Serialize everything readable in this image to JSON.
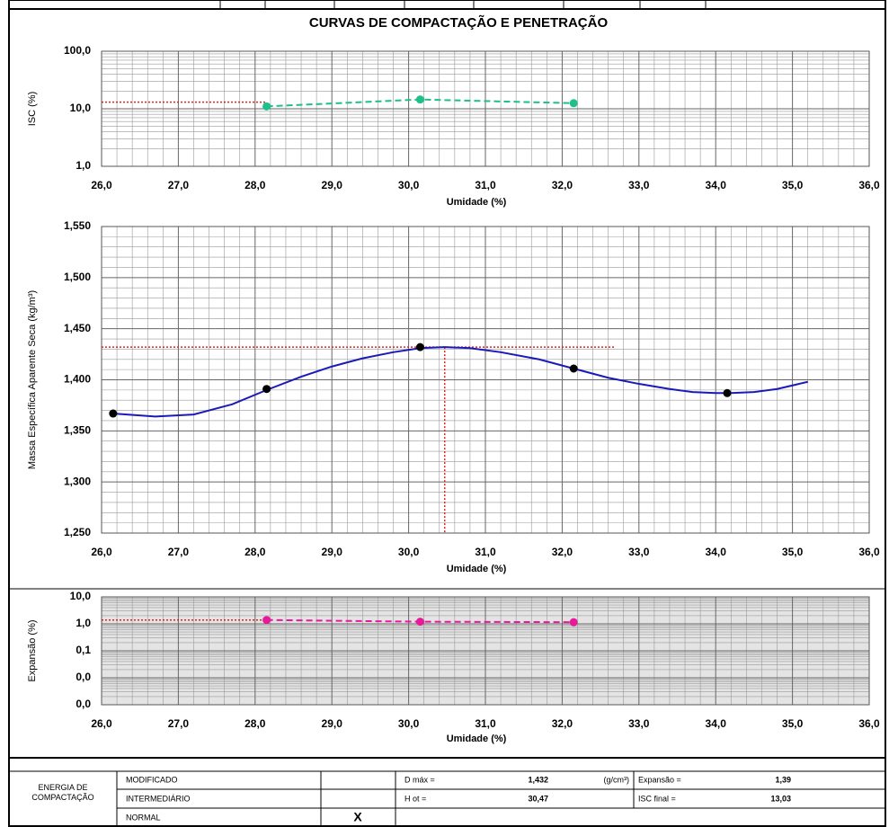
{
  "title": "CURVAS DE COMPACTAÇÃO E PENETRAÇÃO",
  "chart_data": [
    {
      "type": "line",
      "xlabel": "Umidade (%)",
      "ylabel": "ISC (%)",
      "log_scale": true,
      "grid": true,
      "xlim": [
        26,
        36
      ],
      "ylim": [
        1,
        100
      ],
      "xticks": [
        {
          "value": 26,
          "label": "26,0"
        },
        {
          "value": 27,
          "label": "27,0"
        },
        {
          "value": 28,
          "label": "28,0"
        },
        {
          "value": 29,
          "label": "29,0"
        },
        {
          "value": 30,
          "label": "30,0"
        },
        {
          "value": 31,
          "label": "31,0"
        },
        {
          "value": 32,
          "label": "32,0"
        },
        {
          "value": 33,
          "label": "33,0"
        },
        {
          "value": 34,
          "label": "34,0"
        },
        {
          "value": 35,
          "label": "35,0"
        },
        {
          "value": 36,
          "label": "36,0"
        }
      ],
      "yticks": [
        {
          "value": 1,
          "label": "1,0"
        },
        {
          "value": 10,
          "label": "10,0"
        },
        {
          "value": 100,
          "label": "100,0"
        }
      ],
      "reference": {
        "y": 13.03,
        "color": "#e02020"
      },
      "series": [
        {
          "color": "#1dbf8a",
          "dashed": true,
          "markers": true,
          "x": [
            28.15,
            30.15,
            32.15
          ],
          "values": [
            11,
            14.5,
            12.5
          ]
        }
      ]
    },
    {
      "type": "line",
      "xlabel": "Umidade (%)",
      "ylabel": "Massa Específica Aparente Seca (kg/m³)",
      "log_scale": false,
      "grid": true,
      "xlim": [
        26,
        36
      ],
      "ylim": [
        1.25,
        1.55
      ],
      "xticks": [
        {
          "value": 26,
          "label": "26,0"
        },
        {
          "value": 27,
          "label": "27,0"
        },
        {
          "value": 28,
          "label": "28,0"
        },
        {
          "value": 29,
          "label": "29,0"
        },
        {
          "value": 30,
          "label": "30,0"
        },
        {
          "value": 31,
          "label": "31,0"
        },
        {
          "value": 32,
          "label": "32,0"
        },
        {
          "value": 33,
          "label": "33,0"
        },
        {
          "value": 34,
          "label": "34,0"
        },
        {
          "value": 35,
          "label": "35,0"
        },
        {
          "value": 36,
          "label": "36,0"
        }
      ],
      "yticks": [
        {
          "value": 1.25,
          "label": "1,250"
        },
        {
          "value": 1.3,
          "label": "1,300"
        },
        {
          "value": 1.35,
          "label": "1,350"
        },
        {
          "value": 1.4,
          "label": "1,400"
        },
        {
          "value": 1.45,
          "label": "1,450"
        },
        {
          "value": 1.5,
          "label": "1,500"
        },
        {
          "value": 1.55,
          "label": "1,550"
        }
      ],
      "reference": {
        "x": 30.47,
        "y": 1.432,
        "color": "#e02020"
      },
      "series": [
        {
          "color": "#1a1ab8",
          "dashed": false,
          "markers": false,
          "x": [
            26.15,
            26.7,
            27.2,
            27.7,
            28.15,
            28.6,
            29.0,
            29.4,
            29.8,
            30.15,
            30.47,
            30.8,
            31.2,
            31.7,
            32.15,
            32.6,
            33.0,
            33.4,
            33.7,
            34.0,
            34.2,
            34.5,
            34.8,
            35.2
          ],
          "values": [
            1.367,
            1.364,
            1.366,
            1.376,
            1.39,
            1.403,
            1.413,
            1.421,
            1.427,
            1.431,
            1.432,
            1.431,
            1.427,
            1.42,
            1.411,
            1.402,
            1.396,
            1.391,
            1.388,
            1.387,
            1.387,
            1.388,
            1.391,
            1.398
          ]
        },
        {
          "color": "#000000",
          "dashed": false,
          "markers": true,
          "nolines": true,
          "x": [
            26.15,
            28.15,
            30.15,
            32.15,
            34.15
          ],
          "values": [
            1.367,
            1.391,
            1.432,
            1.411,
            1.387
          ]
        }
      ]
    },
    {
      "type": "line",
      "xlabel": "Umidade (%)",
      "ylabel": "Expansão (%)",
      "log_scale": true,
      "grid": true,
      "xlim": [
        26,
        36
      ],
      "ylim": [
        0.001,
        10
      ],
      "xticks": [
        {
          "value": 26,
          "label": "26,0"
        },
        {
          "value": 27,
          "label": "27,0"
        },
        {
          "value": 28,
          "label": "28,0"
        },
        {
          "value": 29,
          "label": "29,0"
        },
        {
          "value": 30,
          "label": "30,0"
        },
        {
          "value": 31,
          "label": "31,0"
        },
        {
          "value": 32,
          "label": "32,0"
        },
        {
          "value": 33,
          "label": "33,0"
        },
        {
          "value": 34,
          "label": "34,0"
        },
        {
          "value": 35,
          "label": "35,0"
        },
        {
          "value": 36,
          "label": "36,0"
        }
      ],
      "yticks": [
        {
          "value": 0.001,
          "label": "0,0"
        },
        {
          "value": 0.01,
          "label": "0,0"
        },
        {
          "value": 0.1,
          "label": "0,1"
        },
        {
          "value": 1,
          "label": "1,0"
        },
        {
          "value": 10,
          "label": "10,0"
        }
      ],
      "reference": {
        "y": 1.39,
        "color": "#e02020"
      },
      "series": [
        {
          "color": "#e8189a",
          "dashed": true,
          "markers": true,
          "x": [
            28.15,
            30.15,
            32.15
          ],
          "values": [
            1.39,
            1.2,
            1.15
          ]
        }
      ]
    }
  ],
  "table": {
    "group": "ENERGIA DE COMPACTAÇÃO",
    "energies": [
      "MODIFICADO",
      "INTERMEDIÁRIO",
      "NORMAL"
    ],
    "selected": "X",
    "dmax_label": "D máx =",
    "dmax": "1,432",
    "dmax_unit": "(g/cm³)",
    "expansion_label": "Expansão =",
    "expansion": "1,39",
    "hot_label": "H ot =",
    "hot": "30,47",
    "isc_label": "ISC final =",
    "isc": "13,03"
  }
}
